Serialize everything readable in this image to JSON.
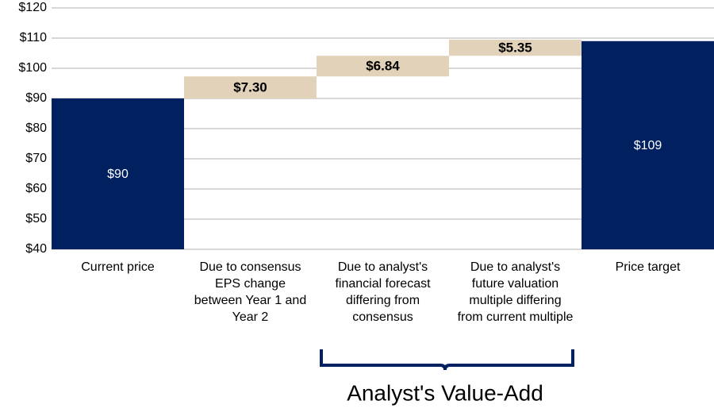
{
  "chart_data": {
    "type": "waterfall",
    "categories": [
      "Current price",
      "Due to consensus EPS change between Year 1 and Year 2",
      "Due to analyst's financial forecast differing from consensus",
      "Due to analyst's future valuation multiple differing from current multiple",
      "Price target"
    ],
    "values": [
      90,
      7.3,
      6.84,
      5.35,
      109
    ],
    "value_labels": [
      "$90",
      "$7.30",
      "$6.84",
      "$5.35",
      "$109"
    ],
    "measure": [
      "absolute",
      "relative",
      "relative",
      "relative",
      "absolute"
    ],
    "colors": [
      "#002060",
      "#e2d2b9",
      "#e2d2b9",
      "#e2d2b9",
      "#002060"
    ],
    "ylim": [
      40,
      120
    ],
    "yticks": [
      {
        "value": 40,
        "label": "$40"
      },
      {
        "value": 50,
        "label": "$50"
      },
      {
        "value": 60,
        "label": "$60"
      },
      {
        "value": 70,
        "label": "$70"
      },
      {
        "value": 80,
        "label": "$80"
      },
      {
        "value": 90,
        "label": "$90"
      },
      {
        "value": 100,
        "label": "$100"
      },
      {
        "value": 110,
        "label": "$110"
      },
      {
        "value": 120,
        "label": "$120"
      }
    ],
    "grid": true,
    "annotation": "Analyst's Value-Add"
  }
}
